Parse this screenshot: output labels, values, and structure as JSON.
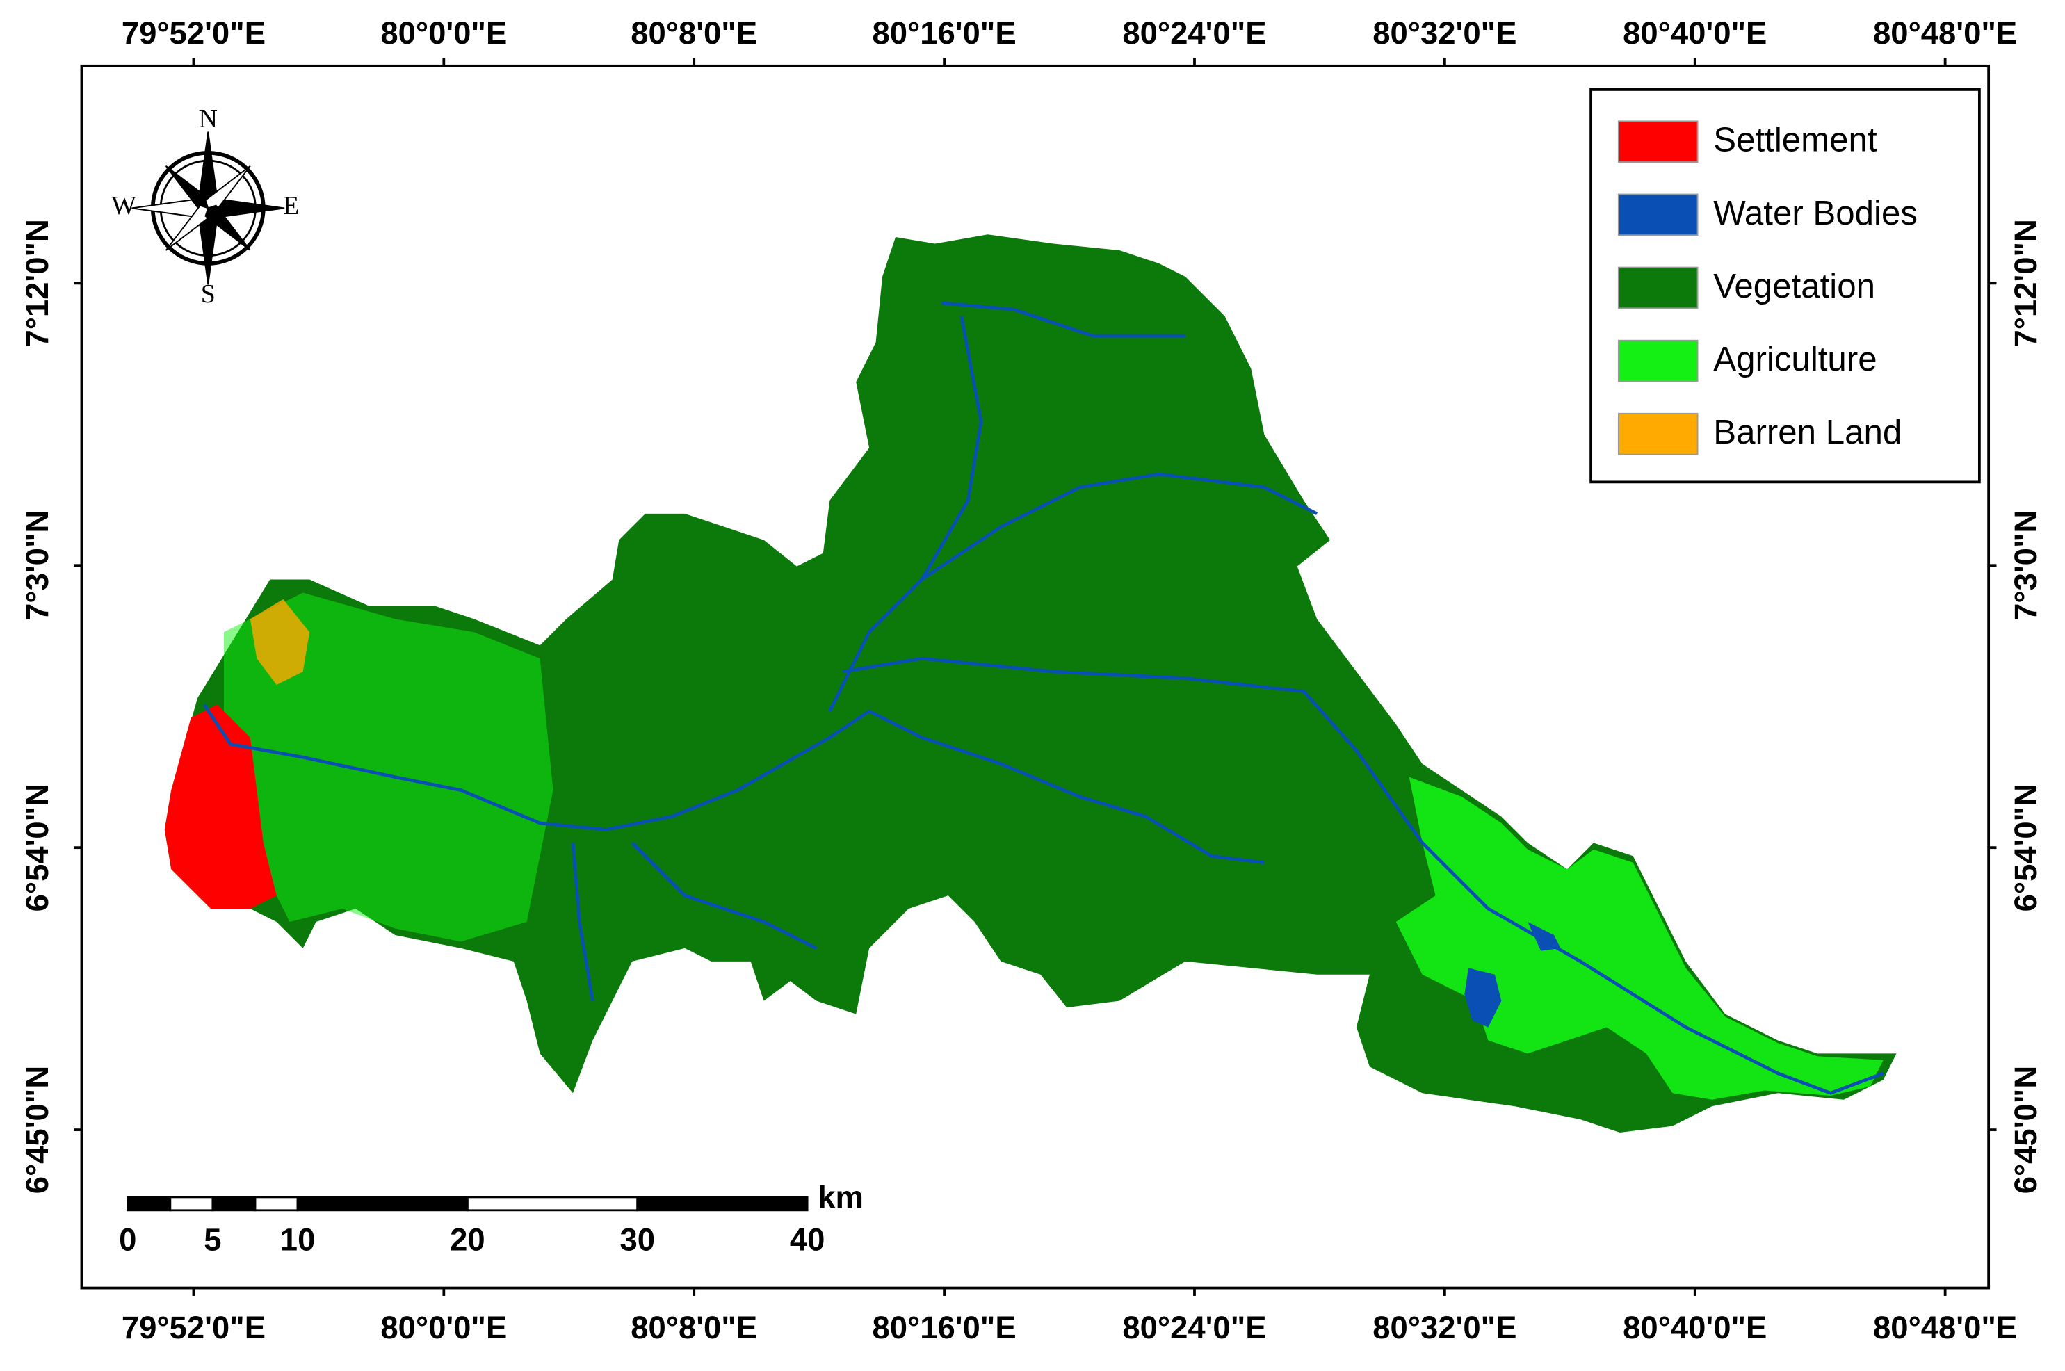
{
  "map": {
    "lon_labels": [
      "79°52'0\"E",
      "80°0'0\"E",
      "80°8'0\"E",
      "80°16'0\"E",
      "80°24'0\"E",
      "80°32'0\"E",
      "80°40'0\"E",
      "80°48'0\"E"
    ],
    "lat_labels": [
      "7°12'0\"N",
      "7°3'0\"N",
      "6°54'0\"N",
      "6°45'0\"N"
    ],
    "legend": [
      {
        "label": "Settlement",
        "color": "#ff0000"
      },
      {
        "label": "Water Bodies",
        "color": "#0a4fb4"
      },
      {
        "label": "Vegetation",
        "color": "#0b7a0b"
      },
      {
        "label": "Agriculture",
        "color": "#14f014"
      },
      {
        "label": "Barren Land",
        "color": "#ffaa00"
      }
    ],
    "compass": {
      "n": "N",
      "s": "S",
      "e": "E",
      "w": "W"
    },
    "scale_bar": {
      "ticks": [
        0,
        5,
        10,
        20,
        30,
        40
      ],
      "unit": "km"
    }
  }
}
